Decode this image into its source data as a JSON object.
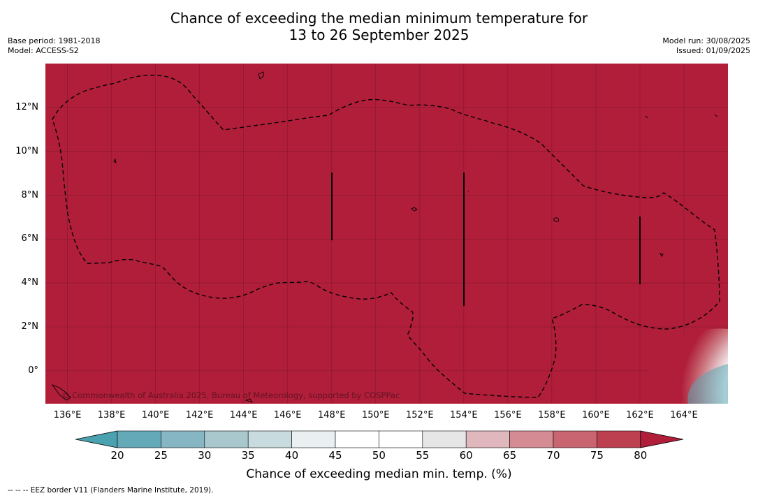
{
  "header": {
    "title_line1": "Chance of exceeding the median minimum temperature for",
    "title_line2": "13 to 26 September 2025",
    "base_period": "Base period: 1981-2018",
    "model": "Model: ACCESS-S2",
    "model_run": "Model run: 30/08/2025",
    "issued": "Issued: 01/09/2025"
  },
  "map": {
    "background_color": "#b01e3a",
    "lat_range": [
      -1.5,
      14
    ],
    "lon_range": [
      135,
      166
    ],
    "lat_labels": [
      "12°N",
      "10°N",
      "8°N",
      "6°N",
      "4°N",
      "2°N",
      "0°"
    ],
    "lat_values": [
      12,
      10,
      8,
      6,
      4,
      2,
      0
    ],
    "lon_labels": [
      "136°E",
      "138°E",
      "140°E",
      "142°E",
      "144°E",
      "146°E",
      "148°E",
      "150°E",
      "152°E",
      "154°E",
      "156°E",
      "158°E",
      "160°E",
      "162°E",
      "164°E"
    ],
    "lon_values": [
      136,
      138,
      140,
      142,
      144,
      146,
      148,
      150,
      152,
      154,
      156,
      158,
      160,
      162,
      164
    ],
    "copyright": "© Commonwealth of Australia 2025, Bureau of Meteorology, supported by COSPPac"
  },
  "colorbar": {
    "labels": [
      "20",
      "25",
      "30",
      "35",
      "40",
      "45",
      "50",
      "55",
      "60",
      "65",
      "70",
      "75",
      "80"
    ],
    "colors": [
      "#63a9b8",
      "#86b6c3",
      "#a8c8ce",
      "#c8dbde",
      "#eaf0f2",
      "#ffffff",
      "#ffffff",
      "#e6e6e6",
      "#dfb7bd",
      "#d48b93",
      "#c86570",
      "#bd4050"
    ],
    "low_extend_color": "#4aa1b0",
    "high_extend_color": "#b01e3a",
    "title": "Chance of exceeding median min. temp. (%)"
  },
  "footnote": "--  --  -- EEZ border V11 (Flanders Marine Institute, 2019)."
}
